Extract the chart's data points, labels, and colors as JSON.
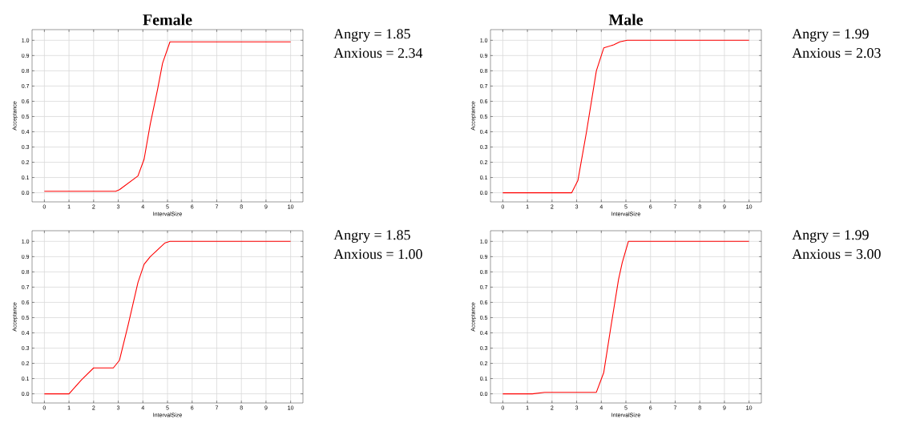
{
  "chart_data": [
    {
      "type": "line",
      "title": "Female",
      "xlabel": "IntervalSize",
      "ylabel": "Acceptance",
      "annotations": [
        "Angry = 1.85",
        "Anxious = 2.34"
      ],
      "grid": true,
      "xlim": [
        -0.5,
        10.5
      ],
      "ylim": [
        -0.06,
        1.07
      ],
      "xticks": [
        0,
        1,
        2,
        3,
        4,
        5,
        6,
        7,
        8,
        9,
        10
      ],
      "yticks": [
        {
          "value": 0,
          "label": "0.0"
        },
        {
          "value": 0.1,
          "label": "0.1"
        },
        {
          "value": 0.2,
          "label": "0.2"
        },
        {
          "value": 0.3,
          "label": "0.3"
        },
        {
          "value": 0.4,
          "label": "0.4"
        },
        {
          "value": 0.5,
          "label": "0.5"
        },
        {
          "value": 0.6,
          "label": "0.6"
        },
        {
          "value": 0.7,
          "label": "0.7"
        },
        {
          "value": 0.8,
          "label": "0.8"
        },
        {
          "value": 0.9,
          "label": "0.9"
        },
        {
          "value": 1.0,
          "label": "1.0"
        }
      ],
      "series": [
        {
          "color": "#ff0000",
          "x": [
            0,
            2.9,
            3.05,
            3.8,
            4.05,
            4.3,
            4.6,
            4.8,
            5.1,
            10
          ],
          "values": [
            0.01,
            0.01,
            0.02,
            0.11,
            0.22,
            0.45,
            0.68,
            0.85,
            0.99,
            0.99
          ]
        }
      ]
    },
    {
      "type": "line",
      "title": "Male",
      "xlabel": "IntervalSize",
      "ylabel": "Acceptance",
      "annotations": [
        "Angry = 1.99",
        "Anxious = 2.03"
      ],
      "grid": true,
      "xlim": [
        -0.5,
        10.5
      ],
      "ylim": [
        -0.06,
        1.07
      ],
      "xticks": [
        0,
        1,
        2,
        3,
        4,
        5,
        6,
        7,
        8,
        9,
        10
      ],
      "yticks": [
        {
          "value": 0,
          "label": "0.0"
        },
        {
          "value": 0.1,
          "label": "0.1"
        },
        {
          "value": 0.2,
          "label": "0.2"
        },
        {
          "value": 0.3,
          "label": "0.3"
        },
        {
          "value": 0.4,
          "label": "0.4"
        },
        {
          "value": 0.5,
          "label": "0.5"
        },
        {
          "value": 0.6,
          "label": "0.6"
        },
        {
          "value": 0.7,
          "label": "0.7"
        },
        {
          "value": 0.8,
          "label": "0.8"
        },
        {
          "value": 0.9,
          "label": "0.9"
        },
        {
          "value": 1.0,
          "label": "1.0"
        }
      ],
      "series": [
        {
          "color": "#ff0000",
          "x": [
            0,
            2.8,
            3.05,
            3.4,
            3.8,
            4.1,
            4.5,
            4.75,
            5.05,
            10
          ],
          "values": [
            0,
            0,
            0.08,
            0.4,
            0.8,
            0.95,
            0.97,
            0.99,
            1.0,
            1.0
          ]
        }
      ]
    },
    {
      "type": "line",
      "xlabel": "IntervalSize",
      "ylabel": "Acceptance",
      "annotations": [
        "Angry = 1.85",
        "Anxious = 1.00"
      ],
      "grid": true,
      "xlim": [
        -0.5,
        10.5
      ],
      "ylim": [
        -0.06,
        1.07
      ],
      "xticks": [
        0,
        1,
        2,
        3,
        4,
        5,
        6,
        7,
        8,
        9,
        10
      ],
      "yticks": [
        {
          "value": 0,
          "label": "0.0"
        },
        {
          "value": 0.1,
          "label": "0.1"
        },
        {
          "value": 0.2,
          "label": "0.2"
        },
        {
          "value": 0.3,
          "label": "0.3"
        },
        {
          "value": 0.4,
          "label": "0.4"
        },
        {
          "value": 0.5,
          "label": "0.5"
        },
        {
          "value": 0.6,
          "label": "0.6"
        },
        {
          "value": 0.7,
          "label": "0.7"
        },
        {
          "value": 0.8,
          "label": "0.8"
        },
        {
          "value": 0.9,
          "label": "0.9"
        },
        {
          "value": 1.0,
          "label": "1.0"
        }
      ],
      "series": [
        {
          "color": "#ff0000",
          "x": [
            0,
            1,
            1.5,
            2,
            2.8,
            3.05,
            3.4,
            3.8,
            4.05,
            4.3,
            4.9,
            5.1,
            10
          ],
          "values": [
            0,
            0,
            0.09,
            0.17,
            0.17,
            0.22,
            0.45,
            0.73,
            0.85,
            0.9,
            0.99,
            1.0,
            1.0
          ]
        }
      ]
    },
    {
      "type": "line",
      "xlabel": "IntervalSize",
      "ylabel": "Acceptance",
      "annotations": [
        "Angry = 1.99",
        "Anxious = 3.00"
      ],
      "grid": true,
      "xlim": [
        -0.5,
        10.5
      ],
      "ylim": [
        -0.06,
        1.07
      ],
      "xticks": [
        0,
        1,
        2,
        3,
        4,
        5,
        6,
        7,
        8,
        9,
        10
      ],
      "yticks": [
        {
          "value": 0,
          "label": "0.0"
        },
        {
          "value": 0.1,
          "label": "0.1"
        },
        {
          "value": 0.2,
          "label": "0.2"
        },
        {
          "value": 0.3,
          "label": "0.3"
        },
        {
          "value": 0.4,
          "label": "0.4"
        },
        {
          "value": 0.5,
          "label": "0.5"
        },
        {
          "value": 0.6,
          "label": "0.6"
        },
        {
          "value": 0.7,
          "label": "0.7"
        },
        {
          "value": 0.8,
          "label": "0.8"
        },
        {
          "value": 0.9,
          "label": "0.9"
        },
        {
          "value": 1.0,
          "label": "1.0"
        }
      ],
      "series": [
        {
          "color": "#ff0000",
          "x": [
            0,
            1.2,
            1.7,
            3.8,
            4.1,
            4.4,
            4.7,
            4.85,
            5.1,
            10
          ],
          "values": [
            0,
            0,
            0.01,
            0.01,
            0.14,
            0.45,
            0.75,
            0.86,
            1.0,
            1.0
          ]
        }
      ]
    }
  ]
}
